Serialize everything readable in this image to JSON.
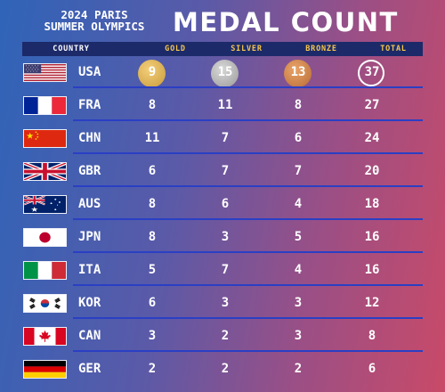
{
  "header": {
    "subtitle_line1": "2024 PARIS",
    "subtitle_line2": "SUMMER OLYMPICS",
    "title": "MEDAL COUNT"
  },
  "columns": {
    "country": "COUNTRY",
    "gold": "GOLD",
    "silver": "SILVER",
    "bronze": "BRONZE",
    "total": "TOTAL"
  },
  "colors": {
    "gold": "#c99a3b",
    "silver": "#9a9a9a",
    "bronze": "#b86c35",
    "header_bar": "#1c2a6a",
    "column_label": "#f6c64a",
    "row_divider": "#2a3fc4"
  },
  "rows": [
    {
      "code": "USA",
      "flag": "usa-flag-icon",
      "gold": "9",
      "silver": "15",
      "bronze": "13",
      "total": "37"
    },
    {
      "code": "FRA",
      "flag": "france-flag-icon",
      "gold": "8",
      "silver": "11",
      "bronze": "8",
      "total": "27"
    },
    {
      "code": "CHN",
      "flag": "china-flag-icon",
      "gold": "11",
      "silver": "7",
      "bronze": "6",
      "total": "24"
    },
    {
      "code": "GBR",
      "flag": "uk-flag-icon",
      "gold": "6",
      "silver": "7",
      "bronze": "7",
      "total": "20"
    },
    {
      "code": "AUS",
      "flag": "australia-flag-icon",
      "gold": "8",
      "silver": "6",
      "bronze": "4",
      "total": "18"
    },
    {
      "code": "JPN",
      "flag": "japan-flag-icon",
      "gold": "8",
      "silver": "3",
      "bronze": "5",
      "total": "16"
    },
    {
      "code": "ITA",
      "flag": "italy-flag-icon",
      "gold": "5",
      "silver": "7",
      "bronze": "4",
      "total": "16"
    },
    {
      "code": "KOR",
      "flag": "south-korea-flag-icon",
      "gold": "6",
      "silver": "3",
      "bronze": "3",
      "total": "12"
    },
    {
      "code": "CAN",
      "flag": "canada-flag-icon",
      "gold": "3",
      "silver": "2",
      "bronze": "3",
      "total": "8"
    },
    {
      "code": "GER",
      "flag": "germany-flag-icon",
      "gold": "2",
      "silver": "2",
      "bronze": "2",
      "total": "6"
    }
  ]
}
